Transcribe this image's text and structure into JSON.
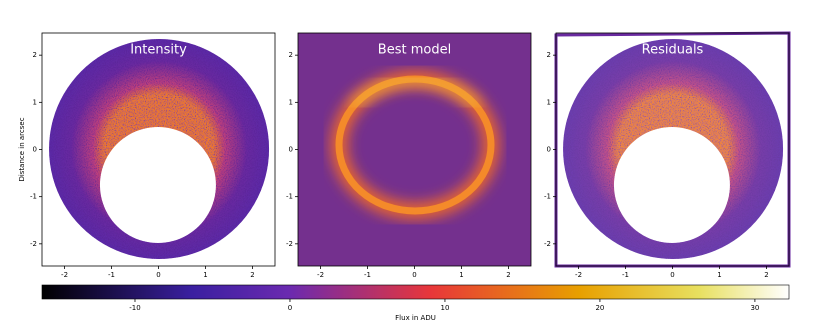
{
  "chart_data": [
    {
      "type": "image",
      "title": "Intensity",
      "ylabel": "Distance in arcsec",
      "xlim": [
        -2.48,
        2.48
      ],
      "ylim": [
        -2.47,
        2.47
      ],
      "xticks": [
        -2,
        -1,
        0,
        1,
        2
      ],
      "yticks": [
        -2,
        -1,
        0,
        1,
        2
      ]
    },
    {
      "type": "image",
      "title": "Best model",
      "xlim": [
        -2.48,
        2.48
      ],
      "ylim": [
        -2.47,
        2.47
      ],
      "xticks": [
        -2,
        -1,
        0,
        1,
        2
      ],
      "yticks": [
        -2,
        -1,
        0,
        1,
        2
      ]
    },
    {
      "type": "image",
      "title": "Residuals",
      "xlim": [
        -2.48,
        2.48
      ],
      "ylim": [
        -2.47,
        2.47
      ],
      "xticks": [
        -2,
        -1,
        0,
        1,
        2
      ],
      "yticks": [
        -2,
        -1,
        0,
        1,
        2
      ]
    },
    {
      "type": "colorbar",
      "xlabel": "Flux in ADU",
      "xlim": [
        -16,
        32.2
      ],
      "xticks": [
        -10,
        0,
        10,
        20,
        30
      ]
    }
  ]
}
